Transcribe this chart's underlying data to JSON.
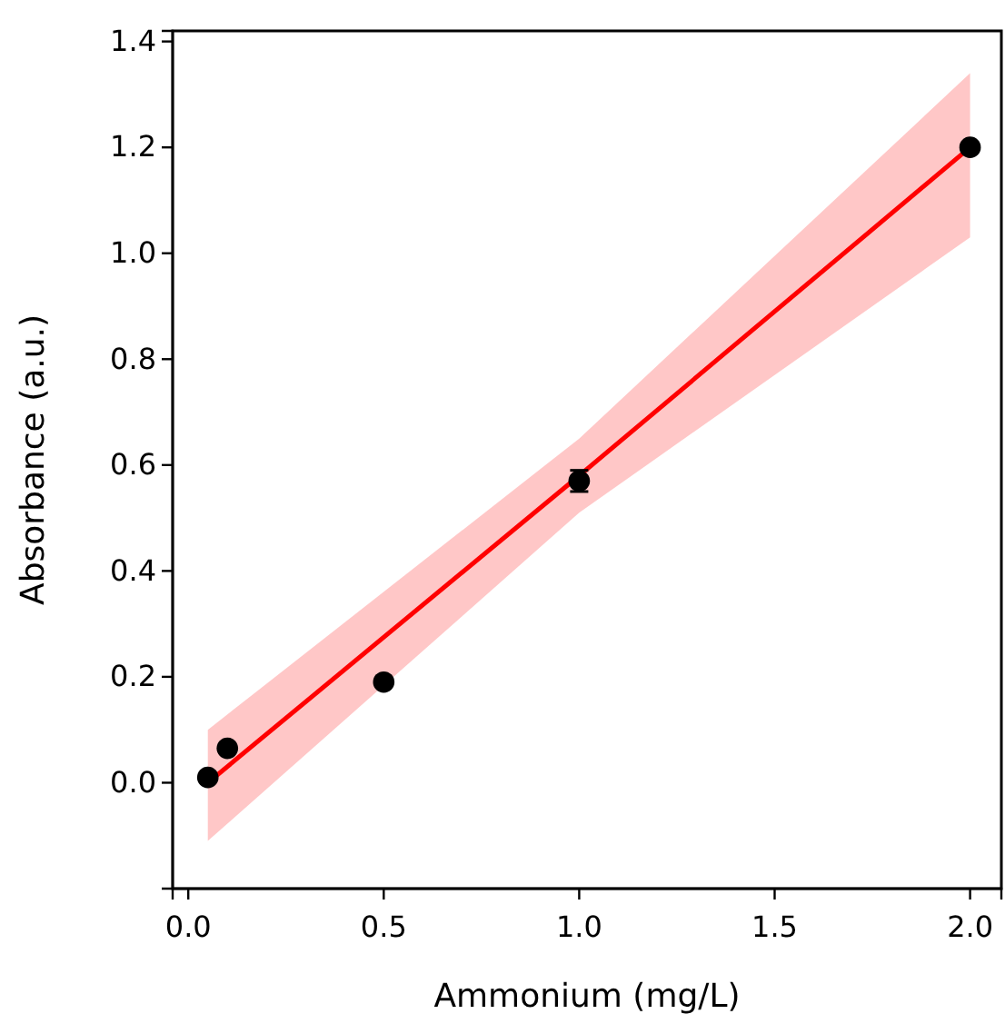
{
  "chart_data": {
    "type": "scatter",
    "xlabel": "Ammonium (mg/L)",
    "ylabel": "Absorbance (a.u.)",
    "xlim": [
      -0.04,
      2.08
    ],
    "xticks": [
      {
        "value": 0,
        "label": "0.0"
      },
      0.5,
      {
        "value": 1,
        "label": "1.0"
      },
      1.5,
      {
        "value": 2,
        "label": "2.0"
      }
    ],
    "ylim": [
      -0.2,
      1.42
    ],
    "yticks": [
      {
        "value": 0,
        "label": "0.0"
      },
      0.2,
      0.4,
      0.6,
      0.8,
      {
        "value": 1,
        "label": "1.0"
      },
      1.2,
      1.4
    ],
    "grid": false,
    "series": [
      {
        "type": "line",
        "color": "#ff0000",
        "x": [
          0.05,
          1.0,
          2.0
        ],
        "values": [
          0.0,
          0.58,
          1.2
        ],
        "lower": [
          -0.11,
          0.51,
          1.03
        ],
        "upper": [
          0.1,
          0.65,
          1.34
        ]
      },
      {
        "marker": "circle",
        "color": "#000000",
        "x": [
          0.05,
          0.1,
          0.5,
          1.0,
          2.0
        ],
        "values": [
          0.01,
          0.065,
          0.19,
          0.57,
          1.2
        ],
        "errors": [
          null,
          null,
          null,
          0.02,
          null
        ]
      }
    ]
  }
}
